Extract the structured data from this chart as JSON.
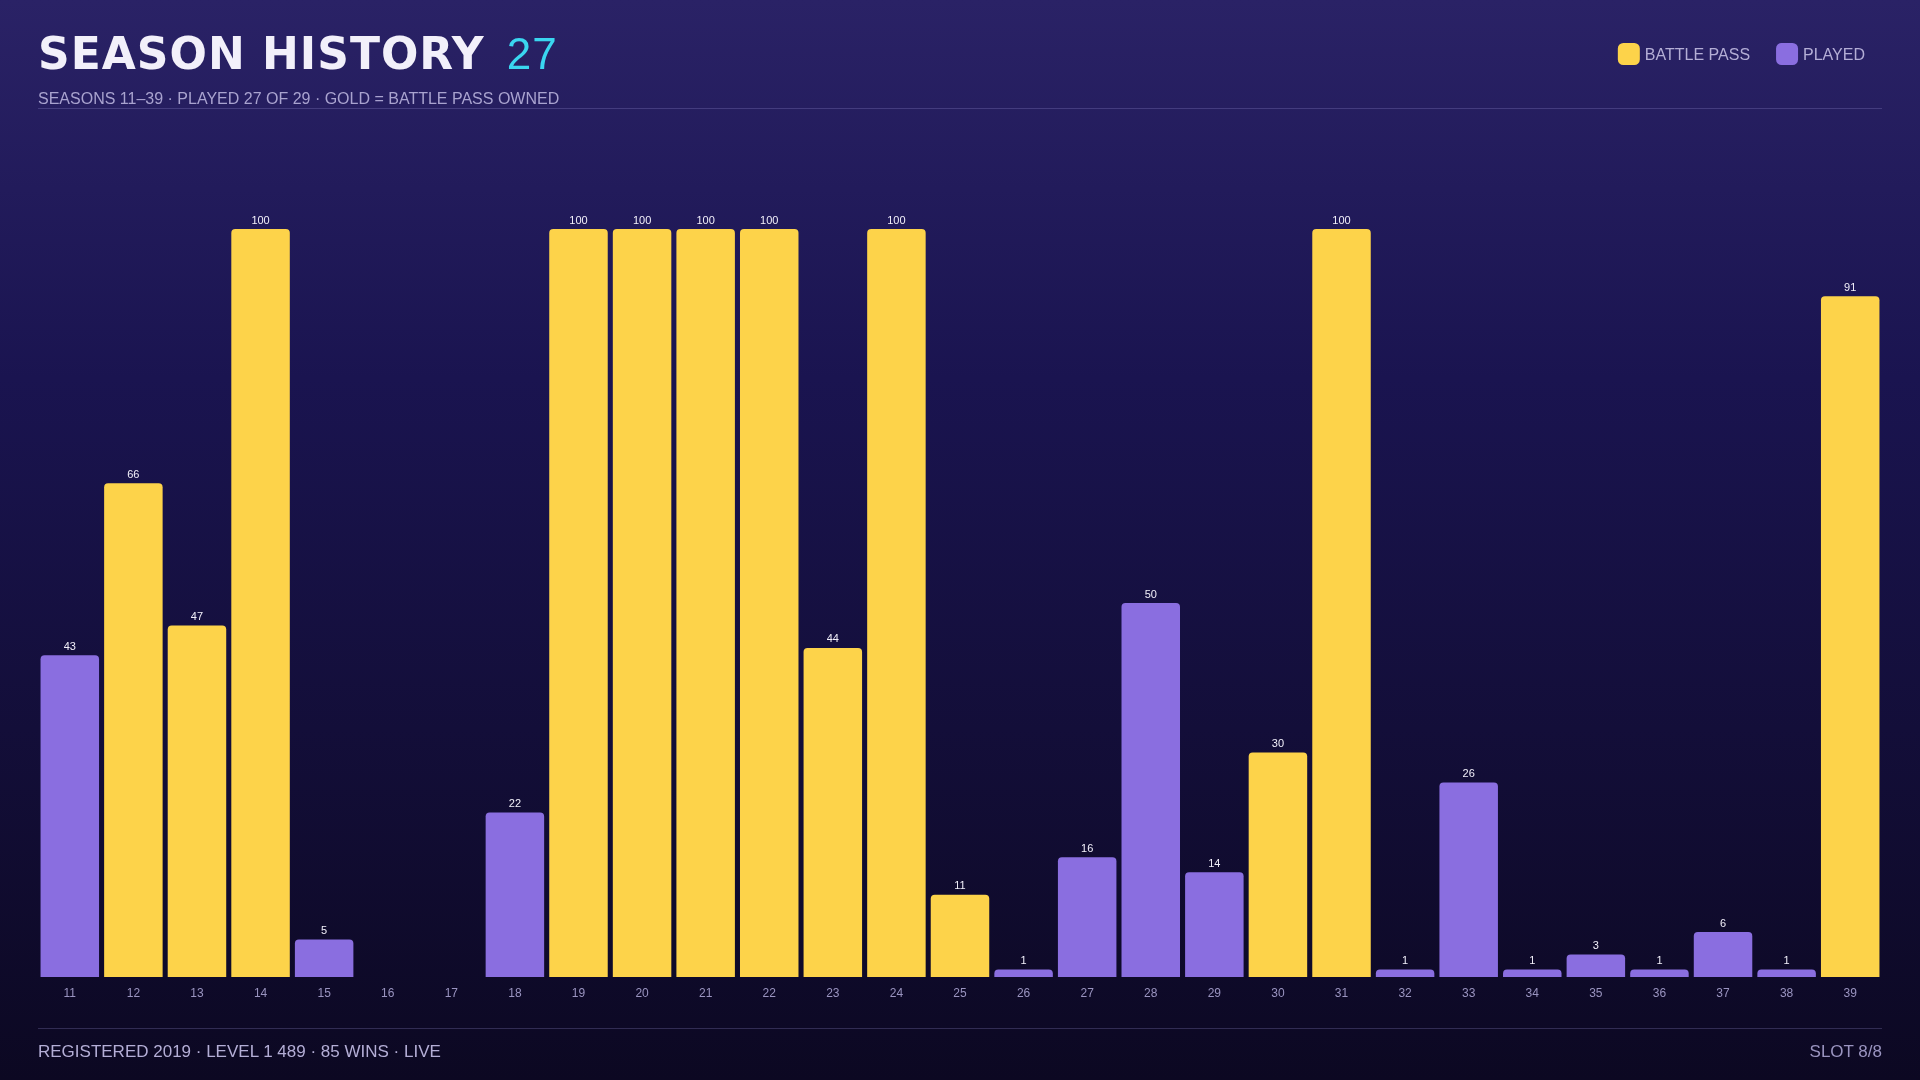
{
  "chart_data": {
    "type": "bar",
    "title": "SEASON HISTORY",
    "subtitle": "SEASONS 11–39  ·  PLAYED 27 OF 29  ·  GOLD = BATTLE PASS OWNED",
    "annotations": [
      "27",
      "REGISTERED 2019  ·  LEVEL 1 489  ·  85 WINS  ·  LIVE",
      "SLOT 8/8"
    ],
    "categories": [
      "11",
      "12",
      "13",
      "14",
      "15",
      "16",
      "17",
      "18",
      "19",
      "20",
      "21",
      "22",
      "23",
      "24",
      "25",
      "26",
      "27",
      "28",
      "29",
      "30",
      "31",
      "32",
      "33",
      "34",
      "35",
      "36",
      "37",
      "38",
      "39"
    ],
    "series": [
      {
        "name": "BATTLE PASS",
        "color": "#fdd34a",
        "values": [
          null,
          66,
          47,
          100,
          null,
          null,
          null,
          null,
          100,
          100,
          100,
          100,
          44,
          100,
          11,
          null,
          null,
          null,
          null,
          30,
          100,
          null,
          null,
          null,
          null,
          null,
          null,
          null,
          91
        ]
      },
      {
        "name": "PLAYED",
        "color": "#8a6ee0",
        "values": [
          43,
          null,
          null,
          null,
          5,
          null,
          null,
          22,
          null,
          null,
          null,
          null,
          null,
          null,
          null,
          1,
          16,
          50,
          14,
          null,
          null,
          1,
          26,
          1,
          3,
          1,
          6,
          1,
          null
        ]
      }
    ],
    "data_labels": true,
    "legend": "top right",
    "grid": false
  }
}
